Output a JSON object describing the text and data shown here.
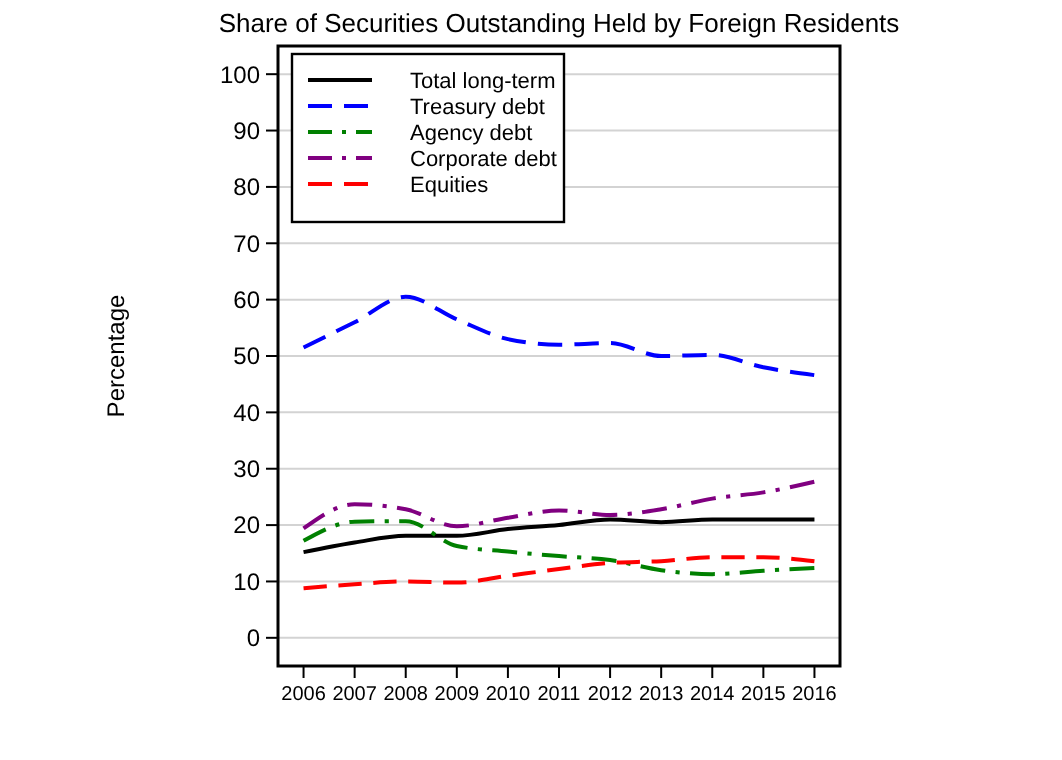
{
  "chart_data": {
    "type": "line",
    "title": "Share of Securities Outstanding Held by Foreign Residents",
    "ylabel": "Percentage",
    "x": [
      2006,
      2007,
      2008,
      2009,
      2010,
      2011,
      2012,
      2013,
      2014,
      2015,
      2016
    ],
    "xlim": [
      2005.5,
      2016.5
    ],
    "xticks": [
      2006,
      2007,
      2008,
      2009,
      2010,
      2011,
      2012,
      2013,
      2014,
      2015,
      2016
    ],
    "ylim": [
      -5,
      105
    ],
    "yticks": [
      0,
      10,
      20,
      30,
      40,
      50,
      60,
      70,
      80,
      90,
      100
    ],
    "grid": "y",
    "legend": "top left",
    "marker": "none",
    "series": [
      {
        "name": "Total long-term",
        "color": "#000000",
        "line_style": "solid",
        "values": [
          15.2,
          16.9,
          18.1,
          18.1,
          19.3,
          20,
          21,
          20.5,
          21,
          21,
          21
        ]
      },
      {
        "name": "Treasury debt",
        "color": "#0000ff",
        "line_style": "dashed",
        "values": [
          51.5,
          56,
          60.5,
          56.5,
          53,
          52,
          52.3,
          50,
          50.2,
          48,
          46.6
        ]
      },
      {
        "name": "Agency debt",
        "color": "#008000",
        "line_style": "dashdot",
        "values": [
          17.2,
          20.6,
          20.7,
          16.3,
          15.3,
          14.5,
          13.8,
          12,
          11.3,
          11.9,
          12.4
        ]
      },
      {
        "name": "Corporate debt",
        "color": "#800080",
        "line_style": "dashdot",
        "values": [
          19.4,
          23.7,
          22.8,
          19.8,
          21.3,
          22.6,
          21.8,
          22.8,
          24.7,
          25.8,
          27.7
        ]
      },
      {
        "name": "Equities",
        "color": "#ff0000",
        "line_style": "dashed",
        "values": [
          8.8,
          9.5,
          10,
          9.8,
          11,
          12.2,
          13.3,
          13.6,
          14.3,
          14.3,
          13.6
        ]
      }
    ]
  }
}
